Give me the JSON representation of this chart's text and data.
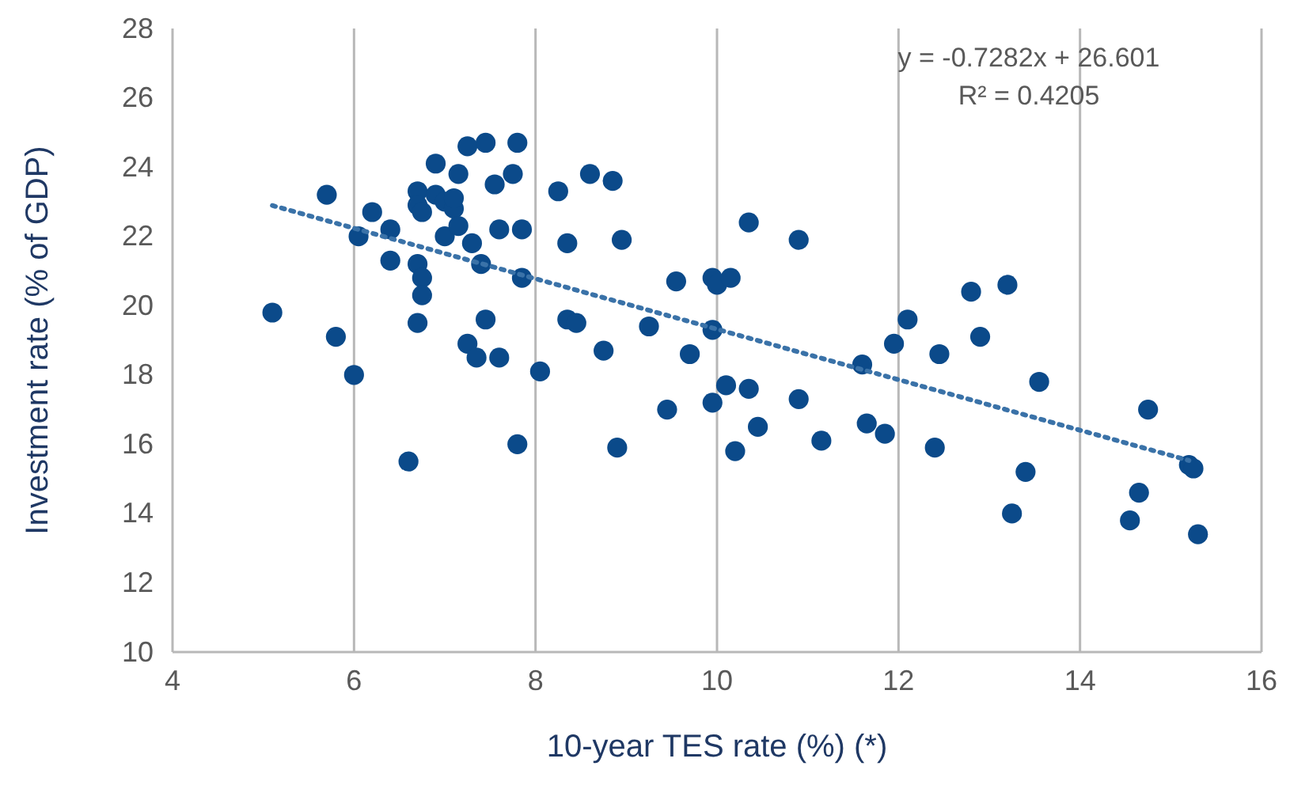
{
  "chart_data": {
    "type": "scatter",
    "xlabel": "10-year TES rate (%) (*)",
    "ylabel": "Investment rate (% of GDP)",
    "annotations": [
      "y = -0.7282x + 26.601",
      "R² = 0.4205"
    ],
    "xlim": [
      4,
      16
    ],
    "xticks": [
      4,
      6,
      8,
      10,
      12,
      14,
      16
    ],
    "ylim": [
      10,
      28
    ],
    "yticks": [
      10,
      12,
      14,
      16,
      18,
      20,
      22,
      24,
      26,
      28
    ],
    "grid": "x",
    "marker": "circle",
    "series": [
      {
        "color": "#0b4a8a",
        "x": [
          5.1,
          5.7,
          5.8,
          6.0,
          6.05,
          6.2,
          6.4,
          6.4,
          6.6,
          6.7,
          6.7,
          6.7,
          6.75,
          6.7,
          6.75,
          6.75,
          6.9,
          6.9,
          7.0,
          7.0,
          7.1,
          7.1,
          7.15,
          7.15,
          7.25,
          7.25,
          7.3,
          7.35,
          7.4,
          7.45,
          7.45,
          7.55,
          7.6,
          7.6,
          7.75,
          7.8,
          7.8,
          7.85,
          7.85,
          8.05,
          8.25,
          8.35,
          8.35,
          8.45,
          8.6,
          8.75,
          8.85,
          8.9,
          8.95,
          9.25,
          9.45,
          9.55,
          9.7,
          9.95,
          10.0,
          9.95,
          9.95,
          10.1,
          10.15,
          10.2,
          10.35,
          10.35,
          10.45,
          10.9,
          10.9,
          11.15,
          11.6,
          11.65,
          11.85,
          11.95,
          12.1,
          12.4,
          12.45,
          12.8,
          12.9,
          13.2,
          13.25,
          13.4,
          13.55,
          14.55,
          14.65,
          14.75,
          15.2,
          15.25,
          15.3
        ],
        "values": [
          19.8,
          23.2,
          19.1,
          18.0,
          22.0,
          22.7,
          22.2,
          21.3,
          15.5,
          23.3,
          22.9,
          21.2,
          22.7,
          19.5,
          20.8,
          20.3,
          24.1,
          23.2,
          23.0,
          22.0,
          22.8,
          23.1,
          23.8,
          22.3,
          24.6,
          18.9,
          21.8,
          18.5,
          21.2,
          24.7,
          19.6,
          23.5,
          22.2,
          18.5,
          23.8,
          24.7,
          16.0,
          22.2,
          20.8,
          18.1,
          23.3,
          21.8,
          19.6,
          19.5,
          23.8,
          18.7,
          23.6,
          15.9,
          21.9,
          19.4,
          17.0,
          20.7,
          18.6,
          20.8,
          20.6,
          19.3,
          17.2,
          17.7,
          20.8,
          15.8,
          22.4,
          17.6,
          16.5,
          21.9,
          17.3,
          16.1,
          18.3,
          16.6,
          16.3,
          18.9,
          19.6,
          15.9,
          18.6,
          20.4,
          19.1,
          20.6,
          14.0,
          15.2,
          17.8,
          13.8,
          14.6,
          17.0,
          15.4,
          15.3,
          13.4
        ]
      },
      {
        "type": "line",
        "color": "#3a72a8",
        "line_style": "dotted",
        "marker": "none",
        "x": [
          5.1,
          15.2
        ],
        "values": [
          22.89,
          15.53
        ]
      }
    ]
  }
}
